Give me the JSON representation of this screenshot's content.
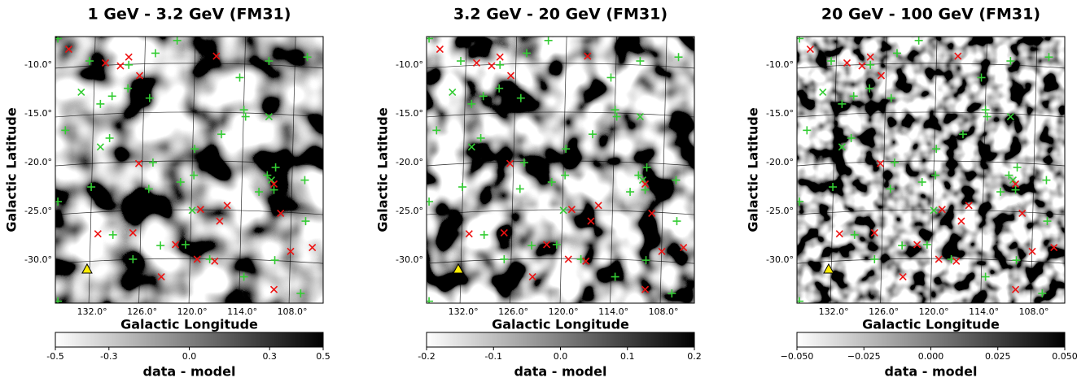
{
  "chart_data": [
    {
      "type": "scatter",
      "title": "1 GeV - 3.2 GeV (FM31)",
      "xlabel": "Galactic Longitude",
      "ylabel": "Galactic Latitude",
      "xlim": [
        136.4,
        104.3
      ],
      "ylim": [
        -34.4,
        -7.1
      ],
      "xticks": [
        {
          "value": 132,
          "label": "132.0°"
        },
        {
          "value": 126,
          "label": "126.0°"
        },
        {
          "value": 120,
          "label": "120.0°"
        },
        {
          "value": 114,
          "label": "114.0°"
        },
        {
          "value": 108,
          "label": "108.0°"
        }
      ],
      "yticks": [
        {
          "value": -10,
          "label": "-10.0°"
        },
        {
          "value": -15,
          "label": "-15.0°"
        },
        {
          "value": -20,
          "label": "-20.0°"
        },
        {
          "value": -25,
          "label": "-25.0°"
        },
        {
          "value": -30,
          "label": "-30.0°"
        }
      ],
      "grid": true,
      "texture_scale": 0.022,
      "colorbar": {
        "label": "data - model",
        "lim": [
          -0.5,
          0.5
        ],
        "ticks": [
          -0.5,
          -0.3,
          {
            "value": 0,
            "label": "0.0"
          },
          0.3,
          0.5
        ]
      },
      "series": [
        {
          "marker": "+",
          "color": "#33cc33",
          "x": [
            136.1,
            132.3,
            127.6,
            124.4,
            121.8,
            110.8,
            106.2,
            127.7,
            131.0,
            129.6,
            125.1,
            114.3,
            113.8,
            113.6,
            135.2,
            129.9,
            116.5,
            119.7,
            124.7,
            111.0,
            110.0,
            110.2,
            112.0,
            106.5,
            119.8,
            121.4,
            125.2,
            132.1,
            136.1,
            106.4,
            129.5,
            123.8,
            127.1,
            117.9,
            120.8,
            110.1,
            113.8,
            107.0,
            136.1
          ],
          "y": [
            -7.3,
            -9.6,
            -10.0,
            -8.8,
            -7.5,
            -9.6,
            -9.2,
            -12.4,
            -14.0,
            -13.2,
            -13.4,
            -11.3,
            -14.6,
            -15.3,
            -16.7,
            -17.5,
            -17.1,
            -18.6,
            -20.0,
            -21.3,
            -20.5,
            -22.8,
            -23.0,
            -21.8,
            -21.3,
            -22.0,
            -22.7,
            -22.5,
            -24.0,
            -26.0,
            -27.4,
            -28.5,
            -29.9,
            -29.9,
            -28.4,
            -30.0,
            -31.7,
            -33.4,
            -34.2
          ]
        },
        {
          "marker": "x",
          "color": "#33cc33",
          "x": [
            133.3,
            131.0,
            110.8,
            120.0,
            110.5
          ],
          "y": [
            -12.8,
            -18.4,
            -15.3,
            -24.9,
            -21.8
          ]
        },
        {
          "marker": "x",
          "color": "#ee1111",
          "x": [
            134.8,
            130.4,
            128.6,
            127.6,
            126.3,
            117.1,
            126.4,
            110.2,
            109.4,
            116.7,
            119.0,
            115.8,
            131.3,
            127.1,
            122.0,
            119.4,
            117.3,
            123.7,
            108.2,
            105.6,
            110.2
          ],
          "y": [
            -8.4,
            -9.8,
            -10.1,
            -9.2,
            -11.1,
            -9.1,
            -20.1,
            -22.2,
            -25.2,
            -26.0,
            -24.8,
            -24.4,
            -27.3,
            -27.2,
            -28.4,
            -29.9,
            -30.1,
            -31.7,
            -29.1,
            -28.7,
            -33.0
          ]
        },
        {
          "marker": "triangle",
          "color": "#ffee00",
          "x": [
            132.6
          ],
          "y": [
            -30.9
          ]
        }
      ]
    },
    {
      "type": "scatter",
      "title": "3.2 GeV - 20 GeV (FM31)",
      "xlabel": "Galactic Longitude",
      "ylabel": "Galactic Latitude",
      "xlim": [
        136.4,
        104.3
      ],
      "ylim": [
        -34.4,
        -7.1
      ],
      "xticks": [
        {
          "value": 132,
          "label": "132.0°"
        },
        {
          "value": 126,
          "label": "126.0°"
        },
        {
          "value": 120,
          "label": "120.0°"
        },
        {
          "value": 114,
          "label": "114.0°"
        },
        {
          "value": 108,
          "label": "108.0°"
        }
      ],
      "yticks": [
        {
          "value": -10,
          "label": "-10.0°"
        },
        {
          "value": -15,
          "label": "-15.0°"
        },
        {
          "value": -20,
          "label": "-20.0°"
        },
        {
          "value": -25,
          "label": "-25.0°"
        },
        {
          "value": -30,
          "label": "-30.0°"
        }
      ],
      "grid": true,
      "texture_scale": 0.028,
      "colorbar": {
        "label": "data - model",
        "lim": [
          -0.2,
          0.2
        ],
        "ticks": [
          -0.2,
          -0.1,
          {
            "value": 0,
            "label": "0.0"
          },
          0.1,
          0.2
        ]
      }
    },
    {
      "type": "scatter",
      "title": "20 GeV - 100 GeV (FM31)",
      "xlabel": "Galactic Longitude",
      "ylabel": "Galactic Latitude",
      "xlim": [
        136.4,
        104.3
      ],
      "ylim": [
        -34.4,
        -7.1
      ],
      "xticks": [
        {
          "value": 132,
          "label": "132.0°"
        },
        {
          "value": 126,
          "label": "126.0°"
        },
        {
          "value": 120,
          "label": "120.0°"
        },
        {
          "value": 114,
          "label": "114.0°"
        },
        {
          "value": 108,
          "label": "108.0°"
        }
      ],
      "yticks": [
        {
          "value": -10,
          "label": "-10.0°"
        },
        {
          "value": -15,
          "label": "-15.0°"
        },
        {
          "value": -20,
          "label": "-20.0°"
        },
        {
          "value": -25,
          "label": "-25.0°"
        },
        {
          "value": -30,
          "label": "-30.0°"
        }
      ],
      "grid": true,
      "texture_scale": 0.05,
      "colorbar": {
        "label": "data - model",
        "lim": [
          -0.05,
          0.05
        ],
        "ticks": [
          {
            "value": -0.05,
            "label": "−0.050"
          },
          {
            "value": -0.025,
            "label": "−0.025"
          },
          {
            "value": 0,
            "label": "0.000"
          },
          {
            "value": 0.025,
            "label": "0.025"
          },
          {
            "value": 0.05,
            "label": "0.050"
          }
        ]
      }
    }
  ]
}
